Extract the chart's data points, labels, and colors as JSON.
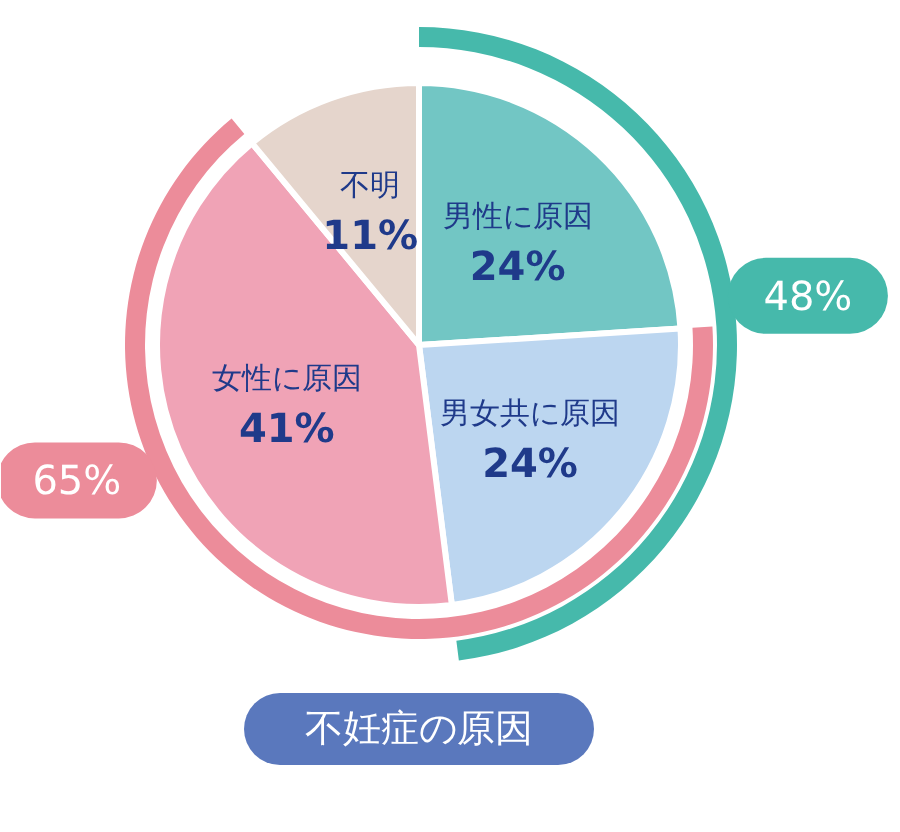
{
  "chart_data": {
    "type": "pie",
    "title": "不妊症の原因",
    "categories": [
      "男性に原因",
      "男女共に原因",
      "女性に原因",
      "不明"
    ],
    "series": [
      {
        "values": [
          24,
          24,
          41,
          11
        ],
        "colors": [
          "#72c6c4",
          "#bcd6f0",
          "#f0a3b6",
          "#e5d5cc"
        ],
        "value_labels": [
          "24%",
          "24%",
          "41%",
          "11%"
        ]
      },
      {
        "type": "donut",
        "color": "#ec8c9a",
        "values": [
          null,
          65,
          null,
          null
        ],
        "value_labels": [
          null,
          "65%",
          null,
          null
        ]
      },
      {
        "type": "donut",
        "color": "#46b9ab",
        "values": [
          48,
          null,
          null,
          null
        ],
        "value_labels": [
          "48%",
          null,
          null,
          null
        ]
      }
    ],
    "legend": false
  }
}
